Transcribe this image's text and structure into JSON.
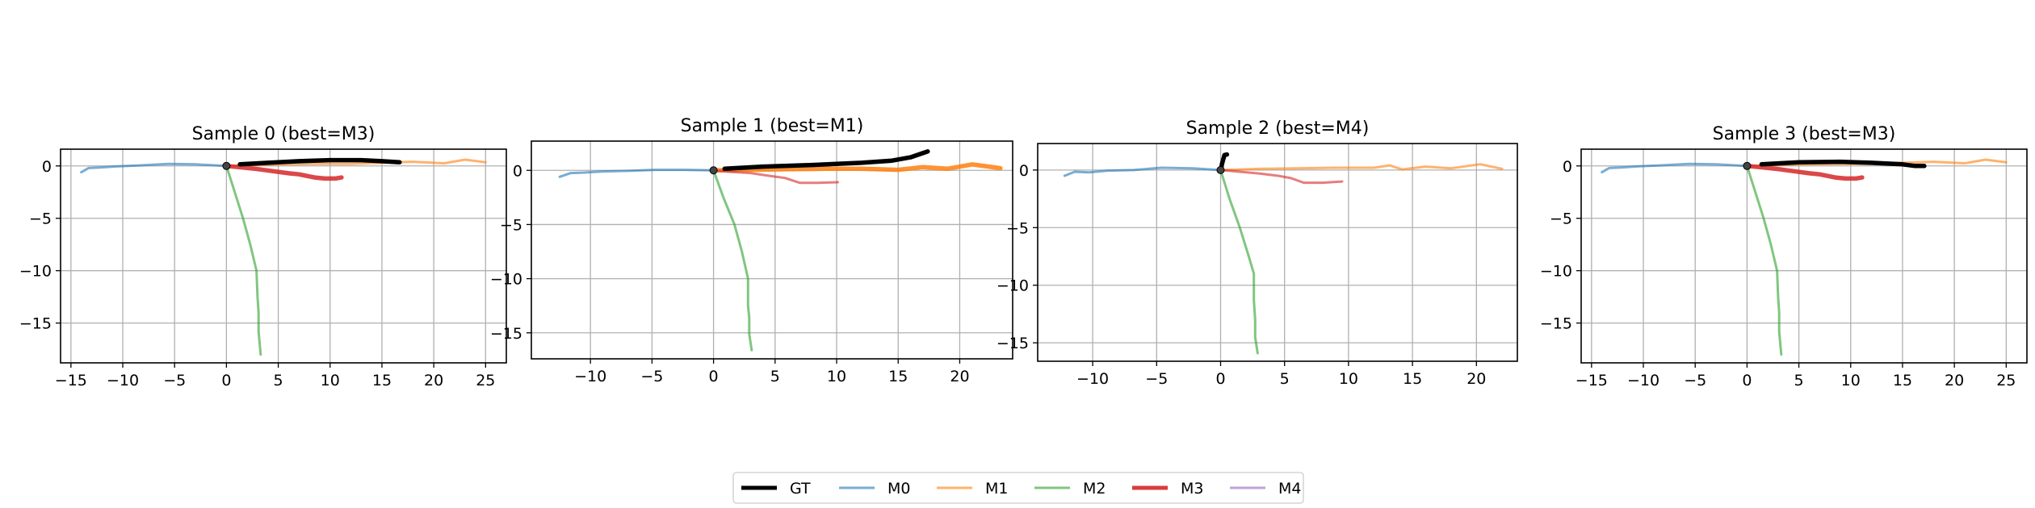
{
  "colors": {
    "GT": "#000000",
    "M0": "#1f77b4",
    "M1": "#ff7f0e",
    "M2": "#2ca02c",
    "M3": "#d62728",
    "M4": "#9467bd",
    "grid": "#b0b0b0",
    "marker": "#444444"
  },
  "legend": {
    "placement": "bottom-center",
    "entries": [
      "GT",
      "M0",
      "M1",
      "M2",
      "M3",
      "M4"
    ]
  },
  "chart_data": [
    {
      "type": "line",
      "title": "Sample 0 (best=M3)",
      "best": "M3",
      "xlim": [
        -16,
        27
      ],
      "ylim": [
        -18.8,
        1.6
      ],
      "xticks": [
        -15,
        -10,
        -5,
        0,
        5,
        10,
        15,
        20,
        25
      ],
      "yticks": [
        0,
        -5,
        -10,
        -15
      ],
      "grid": true,
      "series": [
        {
          "name": "M0",
          "x": [
            -14,
            -13.3,
            -12.2,
            -10.6,
            -8.4,
            -5.6,
            -3,
            0
          ],
          "y": [
            -0.6,
            -0.2,
            -0.15,
            -0.05,
            0.05,
            0.2,
            0.15,
            0
          ]
        },
        {
          "name": "M1",
          "x": [
            0,
            3,
            6,
            9,
            12,
            15,
            18,
            21,
            23,
            25
          ],
          "y": [
            0,
            0.1,
            0.15,
            0.2,
            0.2,
            0.3,
            0.4,
            0.25,
            0.6,
            0.35
          ]
        },
        {
          "name": "M2",
          "x": [
            0,
            0.8,
            1.6,
            2.3,
            2.9,
            3,
            3.1,
            3.1,
            3.3
          ],
          "y": [
            0,
            -2.5,
            -5,
            -7.5,
            -10,
            -12.5,
            -14,
            -15.8,
            -18
          ]
        },
        {
          "name": "M3",
          "x": [
            0,
            1.5,
            3,
            4.5,
            6,
            7,
            8.5,
            9.5,
            10.5,
            11.1
          ],
          "y": [
            0,
            -0.15,
            -0.3,
            -0.5,
            -0.7,
            -0.8,
            -1.1,
            -1.2,
            -1.2,
            -1.1
          ]
        },
        {
          "name": "GT",
          "x": [
            1.3,
            4,
            7,
            10,
            13,
            15,
            16.7
          ],
          "y": [
            0.15,
            0.3,
            0.45,
            0.55,
            0.55,
            0.45,
            0.35
          ]
        }
      ],
      "start_marker": [
        0,
        0
      ]
    },
    {
      "type": "line",
      "title": "Sample 1 (best=M1)",
      "best": "M1",
      "xlim": [
        -14.8,
        24.3
      ],
      "ylim": [
        -17.4,
        2.7
      ],
      "xticks": [
        -10,
        -5,
        0,
        5,
        10,
        15,
        20
      ],
      "yticks": [
        0,
        -5,
        -10,
        -15
      ],
      "grid": true,
      "series": [
        {
          "name": "M0",
          "x": [
            -12.5,
            -11.6,
            -10.5,
            -9,
            -6.9,
            -4.8,
            -2.3,
            0
          ],
          "y": [
            -0.6,
            -0.25,
            -0.2,
            -0.1,
            -0.05,
            0.05,
            0.05,
            0
          ]
        },
        {
          "name": "M1",
          "x": [
            0,
            3,
            6,
            9,
            12,
            15,
            17,
            19,
            21,
            22,
            23.3
          ],
          "y": [
            0,
            0.05,
            0.1,
            0.15,
            0.15,
            0.05,
            0.3,
            0.15,
            0.55,
            0.4,
            0.2
          ]
        },
        {
          "name": "M2",
          "x": [
            0,
            0.8,
            1.7,
            2.3,
            2.8,
            2.8,
            2.9,
            2.9,
            3.1
          ],
          "y": [
            0,
            -2.5,
            -5,
            -7.5,
            -10,
            -12.5,
            -13.6,
            -15.1,
            -16.6
          ]
        },
        {
          "name": "M3",
          "x": [
            0,
            1.5,
            3,
            4.5,
            5.8,
            7,
            8.5,
            10.1
          ],
          "y": [
            0,
            -0.15,
            -0.25,
            -0.5,
            -0.7,
            -1.15,
            -1.15,
            -1.1
          ]
        },
        {
          "name": "GT",
          "x": [
            0.9,
            4,
            8,
            12,
            14.5,
            16,
            17.4
          ],
          "y": [
            0.15,
            0.35,
            0.5,
            0.7,
            0.9,
            1.2,
            1.75
          ]
        }
      ],
      "start_marker": [
        0,
        0
      ]
    },
    {
      "type": "line",
      "title": "Sample 2 (best=M4)",
      "best": "M4",
      "xlim": [
        -14.3,
        23.2
      ],
      "ylim": [
        -16.6,
        2.3
      ],
      "xticks": [
        -10,
        -5,
        0,
        5,
        10,
        15,
        20
      ],
      "yticks": [
        0,
        -5,
        -10,
        -15
      ],
      "grid": true,
      "series": [
        {
          "name": "M0",
          "x": [
            -12.2,
            -11.4,
            -10.3,
            -8.8,
            -6.8,
            -4.6,
            -2.2,
            0
          ],
          "y": [
            -0.5,
            -0.15,
            -0.2,
            -0.05,
            0,
            0.2,
            0.15,
            0
          ]
        },
        {
          "name": "M1",
          "x": [
            0,
            3,
            6,
            9,
            12,
            13.2,
            14.2,
            16,
            18,
            20.3,
            22
          ],
          "y": [
            0,
            0.1,
            0.15,
            0.2,
            0.2,
            0.4,
            0.05,
            0.3,
            0.15,
            0.5,
            0.1
          ]
        },
        {
          "name": "M2",
          "x": [
            0,
            0.7,
            1.5,
            2.2,
            2.6,
            2.6,
            2.7,
            2.7,
            2.9
          ],
          "y": [
            0,
            -2.5,
            -5,
            -7.5,
            -9,
            -11.3,
            -13,
            -14.5,
            -15.9
          ]
        },
        {
          "name": "M3",
          "x": [
            0,
            1.5,
            3,
            4.5,
            5.5,
            6.5,
            8,
            9.5
          ],
          "y": [
            0,
            -0.15,
            -0.3,
            -0.5,
            -0.7,
            -1.1,
            -1.1,
            -1.0
          ]
        },
        {
          "name": "GT",
          "x": [
            0.05,
            0.1,
            0.2,
            0.3,
            0.5
          ],
          "y": [
            0.1,
            0.5,
            0.9,
            1.3,
            1.35
          ]
        }
      ],
      "start_marker": [
        0,
        0
      ]
    },
    {
      "type": "line",
      "title": "Sample 3 (best=M3)",
      "best": "M3",
      "xlim": [
        -16,
        27
      ],
      "ylim": [
        -18.8,
        1.6
      ],
      "xticks": [
        -15,
        -10,
        -5,
        0,
        5,
        10,
        15,
        20,
        25
      ],
      "yticks": [
        0,
        -5,
        -10,
        -15
      ],
      "grid": true,
      "series": [
        {
          "name": "M0",
          "x": [
            -14,
            -13.3,
            -12.2,
            -10.6,
            -8.4,
            -5.6,
            -3,
            0
          ],
          "y": [
            -0.6,
            -0.2,
            -0.15,
            -0.05,
            0.05,
            0.2,
            0.15,
            0
          ]
        },
        {
          "name": "M1",
          "x": [
            0,
            3,
            6,
            9,
            12,
            15,
            18,
            21,
            23,
            25
          ],
          "y": [
            0,
            0.1,
            0.15,
            0.2,
            0.2,
            0.3,
            0.4,
            0.25,
            0.6,
            0.35
          ]
        },
        {
          "name": "M2",
          "x": [
            0,
            0.8,
            1.6,
            2.3,
            2.9,
            3,
            3.1,
            3.1,
            3.3
          ],
          "y": [
            0,
            -2.5,
            -5,
            -7.5,
            -10,
            -12.5,
            -14,
            -15.8,
            -18
          ]
        },
        {
          "name": "M3",
          "x": [
            0,
            1.5,
            3,
            4.5,
            6,
            7,
            8.5,
            9.5,
            10.5,
            11.1
          ],
          "y": [
            0,
            -0.15,
            -0.3,
            -0.5,
            -0.7,
            -0.8,
            -1.1,
            -1.2,
            -1.2,
            -1.1
          ]
        },
        {
          "name": "GT",
          "x": [
            1.4,
            5,
            9,
            12,
            15,
            16.2,
            17.1
          ],
          "y": [
            0.15,
            0.35,
            0.4,
            0.3,
            0.15,
            0,
            0
          ]
        }
      ],
      "start_marker": [
        0,
        0
      ]
    }
  ]
}
